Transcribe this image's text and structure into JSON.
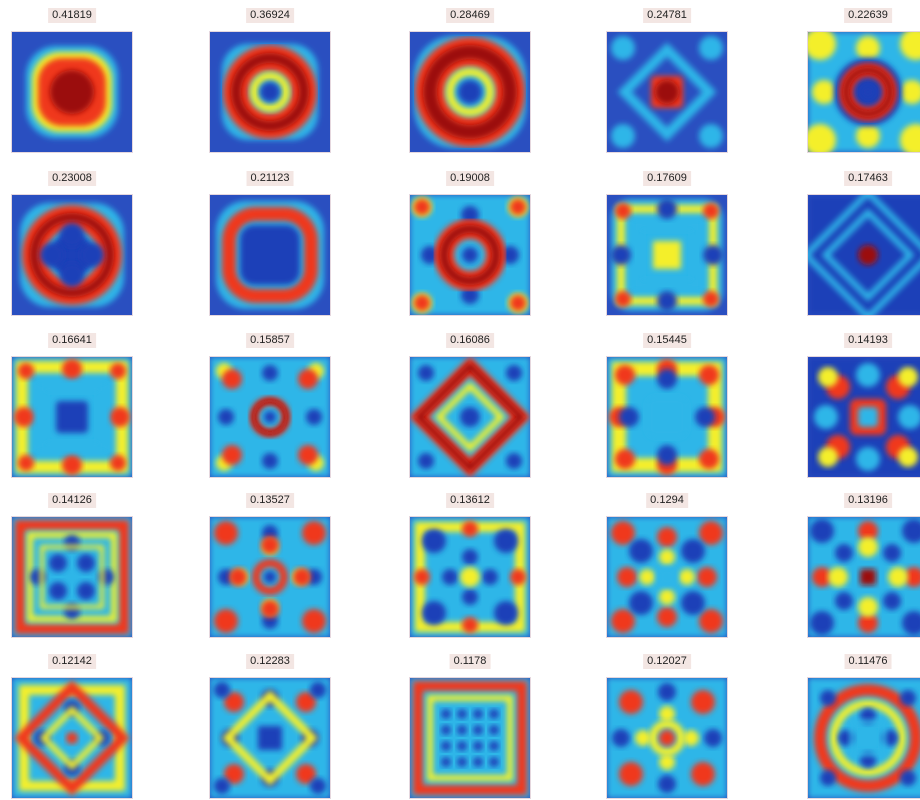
{
  "chart_data": {
    "type": "heatmap",
    "layout": {
      "rows": 5,
      "cols": 5
    },
    "colormap": [
      "#1f3fb8",
      "#2fb6e8",
      "#f4ef2a",
      "#f0381e",
      "#9b0e0e"
    ],
    "background_color": "#2a4fc0",
    "panels": [
      {
        "label": "0.41819",
        "value": 0.41819,
        "pattern": "blob"
      },
      {
        "label": "0.36924",
        "value": 0.36924,
        "pattern": "ring"
      },
      {
        "label": "0.28469",
        "value": 0.28469,
        "pattern": "ring-large"
      },
      {
        "label": "0.24781",
        "value": 0.24781,
        "pattern": "diamond"
      },
      {
        "label": "0.22639",
        "value": 0.22639,
        "pattern": "ring-small-corners"
      },
      {
        "label": "0.23008",
        "value": 0.23008,
        "pattern": "ring-cross"
      },
      {
        "label": "0.21123",
        "value": 0.21123,
        "pattern": "square-ring"
      },
      {
        "label": "0.19008",
        "value": 0.19008,
        "pattern": "ring-spots"
      },
      {
        "label": "0.17609",
        "value": 0.17609,
        "pattern": "nested-squares"
      },
      {
        "label": "0.17463",
        "value": 0.17463,
        "pattern": "diamond-nested"
      },
      {
        "label": "0.16641",
        "value": 0.16641,
        "pattern": "frame"
      },
      {
        "label": "0.15857",
        "value": 0.15857,
        "pattern": "ring-spots-2"
      },
      {
        "label": "0.16086",
        "value": 0.16086,
        "pattern": "diamond-ring"
      },
      {
        "label": "0.15445",
        "value": 0.15445,
        "pattern": "frame-spots"
      },
      {
        "label": "0.14193",
        "value": 0.14193,
        "pattern": "x-cross"
      },
      {
        "label": "0.14126",
        "value": 0.14126,
        "pattern": "grid-frame"
      },
      {
        "label": "0.13527",
        "value": 0.13527,
        "pattern": "ring-spots-3"
      },
      {
        "label": "0.13612",
        "value": 0.13612,
        "pattern": "frame-soft"
      },
      {
        "label": "0.1294",
        "value": 0.1294,
        "pattern": "star"
      },
      {
        "label": "0.13196",
        "value": 0.13196,
        "pattern": "center-square"
      },
      {
        "label": "0.12142",
        "value": 0.12142,
        "pattern": "diamond-ring-2"
      },
      {
        "label": "0.12283",
        "value": 0.12283,
        "pattern": "diamond-spots"
      },
      {
        "label": "0.1178",
        "value": 0.1178,
        "pattern": "grid"
      },
      {
        "label": "0.12027",
        "value": 0.12027,
        "pattern": "star-2"
      },
      {
        "label": "0.11476",
        "value": 0.11476,
        "pattern": "octagon"
      }
    ]
  }
}
